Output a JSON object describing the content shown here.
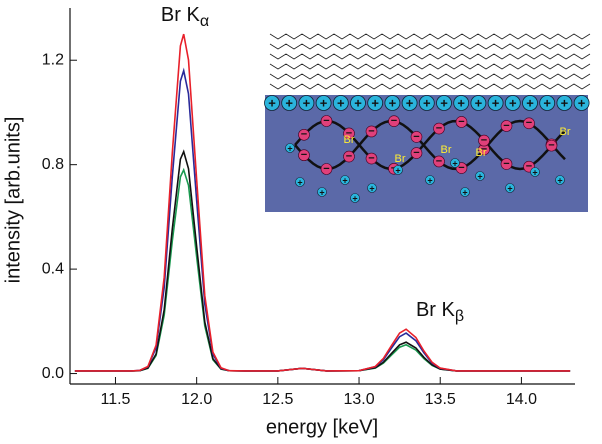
{
  "chart_data": {
    "type": "line",
    "xlabel": "energy [keV]",
    "ylabel": "intensity [arb.units]",
    "xlim": [
      11.22,
      14.33
    ],
    "ylim": [
      -0.04,
      1.4
    ],
    "xticks": [
      11.5,
      {
        "value": 12,
        "label": "12.0"
      },
      12.5,
      {
        "value": 13,
        "label": "13.0"
      },
      13.5,
      {
        "value": 14,
        "label": "14.0"
      }
    ],
    "yticks": [
      {
        "value": 0,
        "label": "0.0"
      },
      0.4,
      0.8,
      1.2
    ],
    "annotations": [
      {
        "text": "Br K",
        "sub": "α"
      },
      {
        "text": "Br K",
        "sub": "β"
      }
    ],
    "x": [
      11.25,
      11.4,
      11.5,
      11.6,
      11.65,
      11.7,
      11.75,
      11.8,
      11.85,
      11.9,
      11.92,
      11.95,
      12.0,
      12.05,
      12.1,
      12.15,
      12.2,
      12.3,
      12.5,
      12.65,
      12.8,
      13.0,
      13.1,
      13.15,
      13.2,
      13.25,
      13.29,
      13.35,
      13.4,
      13.45,
      13.5,
      13.6,
      13.8,
      14.0,
      14.3
    ],
    "series": [
      {
        "color": "#e8202a",
        "values": [
          0.01,
          0.01,
          0.01,
          0.01,
          0.012,
          0.027,
          0.109,
          0.369,
          0.845,
          1.255,
          1.3,
          1.201,
          0.74,
          0.298,
          0.082,
          0.022,
          0.011,
          0.01,
          0.01,
          0.02,
          0.01,
          0.011,
          0.027,
          0.058,
          0.107,
          0.155,
          0.17,
          0.138,
          0.086,
          0.043,
          0.021,
          0.01,
          0.01,
          0.01,
          0.01
        ]
      },
      {
        "color": "#2a2a9a",
        "values": [
          0.01,
          0.01,
          0.01,
          0.01,
          0.012,
          0.026,
          0.099,
          0.33,
          0.754,
          1.12,
          1.16,
          1.071,
          0.661,
          0.266,
          0.074,
          0.02,
          0.011,
          0.01,
          0.01,
          0.02,
          0.01,
          0.011,
          0.026,
          0.053,
          0.098,
          0.141,
          0.155,
          0.126,
          0.079,
          0.04,
          0.02,
          0.01,
          0.01,
          0.01,
          0.01
        ]
      },
      {
        "color": "#111111",
        "values": [
          0.01,
          0.01,
          0.01,
          0.01,
          0.011,
          0.021,
          0.075,
          0.244,
          0.554,
          0.821,
          0.85,
          0.785,
          0.485,
          0.197,
          0.057,
          0.018,
          0.011,
          0.01,
          0.01,
          0.02,
          0.01,
          0.011,
          0.022,
          0.043,
          0.077,
          0.11,
          0.12,
          0.098,
          0.062,
          0.033,
          0.017,
          0.01,
          0.01,
          0.01,
          0.01
        ]
      },
      {
        "color": "#1a9a50",
        "values": [
          0.01,
          0.01,
          0.01,
          0.01,
          0.011,
          0.02,
          0.069,
          0.224,
          0.508,
          0.753,
          0.78,
          0.721,
          0.446,
          0.182,
          0.053,
          0.017,
          0.011,
          0.01,
          0.01,
          0.02,
          0.01,
          0.011,
          0.021,
          0.04,
          0.071,
          0.101,
          0.11,
          0.09,
          0.057,
          0.031,
          0.017,
          0.01,
          0.01,
          0.01,
          0.01
        ]
      }
    ]
  },
  "inset": {
    "labels": [
      "Br",
      "Br",
      "Br",
      "Br",
      "Br"
    ]
  }
}
